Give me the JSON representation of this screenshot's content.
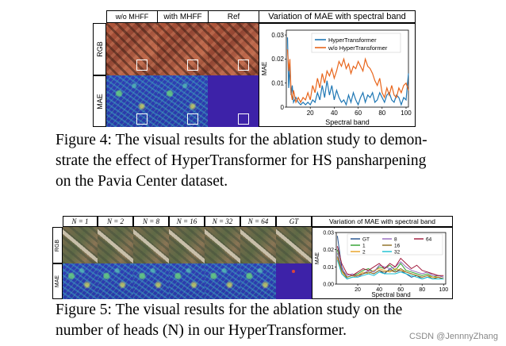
{
  "figure4": {
    "headers": [
      "w/o MHFF",
      "with MHFF",
      "Ref",
      "Variation of MAE with spectral band"
    ],
    "row_labels": [
      "RGB",
      "MAE"
    ],
    "caption_lines": [
      "Figure 4: The visual results for the ablation study to demon-",
      "strate the effect of HyperTransformer for HS pansharpening",
      "on the Pavia Center dataset."
    ]
  },
  "figure5": {
    "headers": [
      "N = 1",
      "N = 2",
      "N = 8",
      "N = 16",
      "N = 32",
      "N = 64",
      "GT",
      "Variation of MAE with spectral band"
    ],
    "row_labels": [
      "RGB",
      "MAE"
    ],
    "caption_lines": [
      "Figure 5:  The visual results for the ablation study on the",
      "number of heads (N) in our HyperTransformer."
    ]
  },
  "watermark": "CSDN @JennnyZhang",
  "chart_data": [
    {
      "type": "line",
      "xlabel": "Spectral band",
      "ylabel": "MAE",
      "xlim": [
        0,
        102
      ],
      "ylim": [
        0,
        0.032
      ],
      "xticks": [
        20,
        40,
        60,
        80,
        100
      ],
      "yticks": [
        0,
        0.01,
        0.02,
        0.03
      ],
      "ytick_labels": [
        "0",
        "0.01",
        "0.02",
        "0.03"
      ],
      "legend_position": "top-right",
      "series": [
        {
          "name": "HyperTransformer",
          "color": "#1f77b4",
          "x": [
            1,
            2,
            3,
            4,
            5,
            6,
            8,
            10,
            12,
            14,
            16,
            18,
            20,
            22,
            24,
            26,
            28,
            30,
            32,
            34,
            36,
            38,
            40,
            42,
            44,
            46,
            48,
            50,
            52,
            54,
            56,
            58,
            60,
            62,
            64,
            66,
            68,
            70,
            72,
            74,
            76,
            78,
            80,
            82,
            84,
            86,
            88,
            90,
            92,
            94,
            96,
            98,
            100,
            102
          ],
          "y": [
            0.029,
            0.008,
            0.017,
            0.005,
            0.009,
            0.002,
            0.004,
            0.002,
            0.001,
            0.002,
            0.001,
            0.002,
            0.001,
            0.003,
            0.002,
            0.006,
            0.003,
            0.009,
            0.004,
            0.011,
            0.005,
            0.009,
            0.003,
            0.007,
            0.004,
            0.002,
            0.003,
            0.001,
            0.005,
            0.002,
            0.006,
            0.003,
            0.001,
            0.004,
            0.006,
            0.002,
            0.005,
            0.004,
            0.006,
            0.002,
            0.003,
            0.006,
            0.004,
            0.002,
            0.005,
            0.006,
            0.003,
            0.002,
            0.005,
            0.004,
            0.001,
            0.004,
            0.003,
            0.014
          ]
        },
        {
          "name": "w/o HyperTransformer",
          "color": "#e8651b",
          "x": [
            1,
            2,
            3,
            4,
            5,
            6,
            8,
            10,
            12,
            14,
            16,
            18,
            20,
            22,
            24,
            26,
            28,
            30,
            32,
            34,
            36,
            38,
            40,
            42,
            44,
            46,
            48,
            50,
            52,
            54,
            56,
            58,
            60,
            62,
            64,
            66,
            68,
            70,
            72,
            74,
            76,
            78,
            80,
            82,
            84,
            86,
            88,
            90,
            92,
            94,
            96,
            98,
            100,
            102
          ],
          "y": [
            0.024,
            0.015,
            0.02,
            0.006,
            0.003,
            0.007,
            0.002,
            0.004,
            0.002,
            0.004,
            0.003,
            0.006,
            0.003,
            0.009,
            0.006,
            0.012,
            0.008,
            0.014,
            0.01,
            0.015,
            0.013,
            0.016,
            0.012,
            0.015,
            0.019,
            0.017,
            0.02,
            0.016,
            0.018,
            0.014,
            0.017,
            0.016,
            0.019,
            0.017,
            0.015,
            0.02,
            0.017,
            0.016,
            0.014,
            0.011,
            0.009,
            0.012,
            0.006,
            0.004,
            0.008,
            0.005,
            0.009,
            0.005,
            0.004,
            0.008,
            0.006,
            0.009,
            0.01,
            0.007
          ]
        }
      ]
    },
    {
      "type": "line",
      "xlabel": "Spectral band",
      "ylabel": "MAE",
      "xlim": [
        0,
        102
      ],
      "ylim": [
        0,
        0.03
      ],
      "xticks": [
        20,
        40,
        60,
        80,
        100
      ],
      "yticks": [
        0,
        0.01,
        0.02,
        0.03
      ],
      "ytick_labels": [
        "0.00",
        "0.01",
        "0.02",
        "0.03"
      ],
      "legend_position": "top",
      "series": [
        {
          "name": "GT",
          "color": "#1f4e8c",
          "x": [
            1,
            5,
            10,
            15,
            20,
            25,
            30,
            35,
            40,
            45,
            50,
            55,
            60,
            65,
            70,
            75,
            80,
            85,
            90,
            95,
            100
          ],
          "y": [
            0.028,
            0.01,
            0.003,
            0.004,
            0.005,
            0.006,
            0.007,
            0.006,
            0.008,
            0.006,
            0.009,
            0.007,
            0.008,
            0.006,
            0.004,
            0.005,
            0.003,
            0.004,
            0.003,
            0.004,
            0.003
          ]
        },
        {
          "name": "1",
          "color": "#2ca02c",
          "x": [
            1,
            5,
            10,
            15,
            20,
            25,
            30,
            35,
            40,
            45,
            50,
            55,
            60,
            65,
            70,
            75,
            80,
            85,
            90,
            95,
            100
          ],
          "y": [
            0.02,
            0.008,
            0.004,
            0.005,
            0.006,
            0.008,
            0.009,
            0.007,
            0.01,
            0.009,
            0.011,
            0.008,
            0.012,
            0.008,
            0.007,
            0.006,
            0.005,
            0.006,
            0.004,
            0.005,
            0.004
          ]
        },
        {
          "name": "2",
          "color": "#e8a020",
          "x": [
            1,
            5,
            10,
            15,
            20,
            25,
            30,
            35,
            40,
            45,
            50,
            55,
            60,
            65,
            70,
            75,
            80,
            85,
            90,
            95,
            100
          ],
          "y": [
            0.015,
            0.007,
            0.003,
            0.004,
            0.005,
            0.007,
            0.006,
            0.008,
            0.009,
            0.008,
            0.007,
            0.009,
            0.008,
            0.007,
            0.006,
            0.005,
            0.004,
            0.005,
            0.004,
            0.004,
            0.003
          ]
        },
        {
          "name": "8",
          "color": "#9467bd",
          "x": [
            1,
            5,
            10,
            15,
            20,
            25,
            30,
            35,
            40,
            45,
            50,
            55,
            60,
            65,
            70,
            75,
            80,
            85,
            90,
            95,
            100
          ],
          "y": [
            0.018,
            0.009,
            0.005,
            0.006,
            0.004,
            0.006,
            0.008,
            0.007,
            0.011,
            0.01,
            0.009,
            0.01,
            0.013,
            0.01,
            0.008,
            0.007,
            0.006,
            0.007,
            0.005,
            0.005,
            0.004
          ]
        },
        {
          "name": "16",
          "color": "#8c6d1f",
          "x": [
            1,
            5,
            10,
            15,
            20,
            25,
            30,
            35,
            40,
            45,
            50,
            55,
            60,
            65,
            70,
            75,
            80,
            85,
            90,
            95,
            100
          ],
          "y": [
            0.016,
            0.008,
            0.004,
            0.005,
            0.005,
            0.006,
            0.007,
            0.006,
            0.008,
            0.007,
            0.008,
            0.007,
            0.009,
            0.007,
            0.006,
            0.005,
            0.004,
            0.005,
            0.003,
            0.004,
            0.003
          ]
        },
        {
          "name": "32",
          "color": "#17becf",
          "x": [
            1,
            5,
            10,
            15,
            20,
            25,
            30,
            35,
            40,
            45,
            50,
            55,
            60,
            65,
            70,
            75,
            80,
            85,
            90,
            95,
            100
          ],
          "y": [
            0.014,
            0.006,
            0.003,
            0.004,
            0.004,
            0.005,
            0.006,
            0.005,
            0.007,
            0.006,
            0.006,
            0.006,
            0.007,
            0.006,
            0.005,
            0.004,
            0.003,
            0.004,
            0.003,
            0.003,
            0.003
          ]
        },
        {
          "name": "64",
          "color": "#a0173a",
          "x": [
            1,
            5,
            10,
            15,
            20,
            25,
            30,
            35,
            40,
            45,
            50,
            55,
            60,
            65,
            70,
            75,
            80,
            85,
            90,
            95,
            100
          ],
          "y": [
            0.022,
            0.012,
            0.006,
            0.005,
            0.007,
            0.009,
            0.008,
            0.01,
            0.012,
            0.009,
            0.012,
            0.01,
            0.015,
            0.012,
            0.009,
            0.011,
            0.008,
            0.007,
            0.006,
            0.005,
            0.005
          ]
        }
      ]
    }
  ]
}
